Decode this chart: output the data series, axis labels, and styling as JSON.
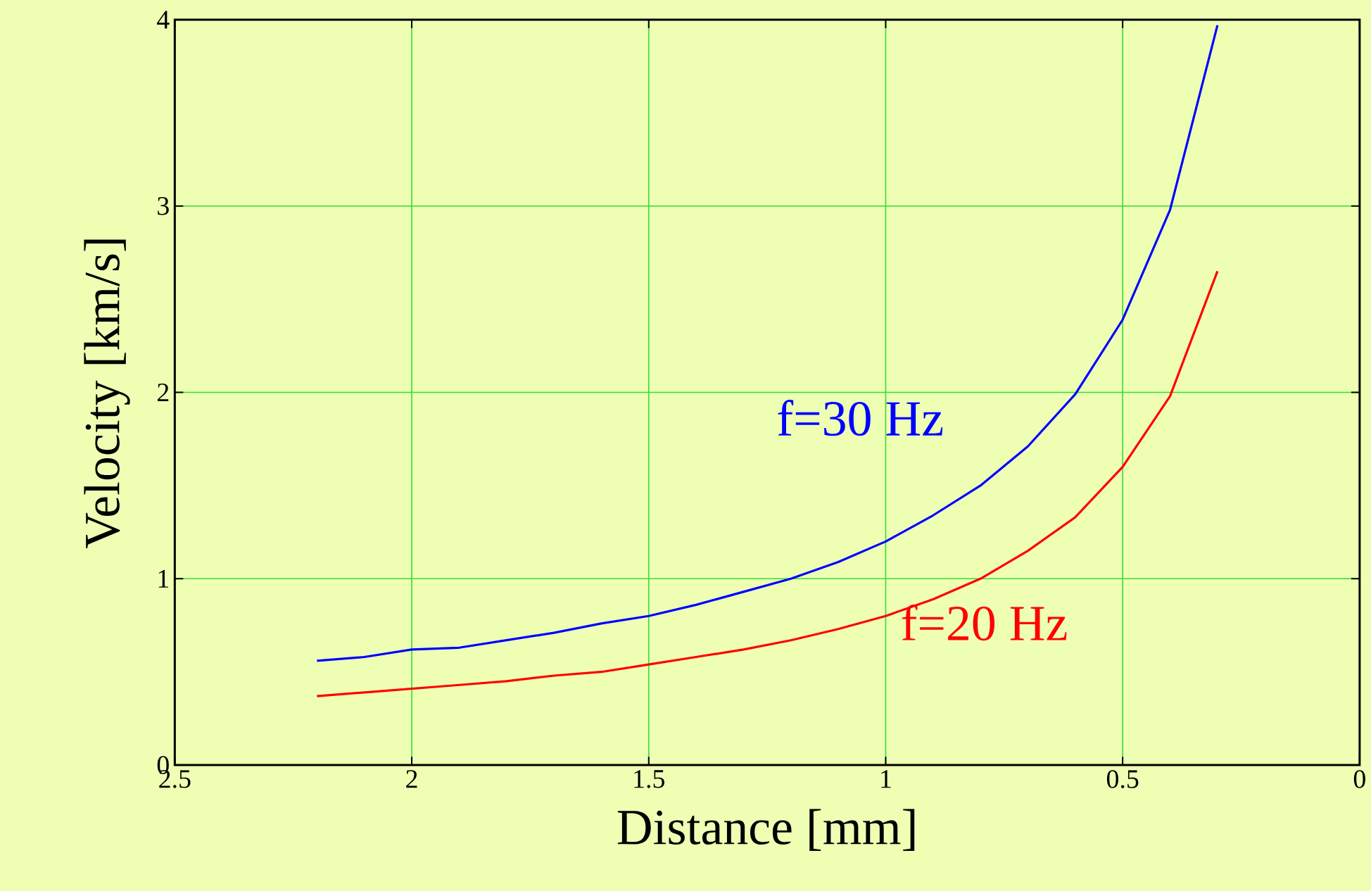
{
  "chart_data": {
    "type": "line",
    "xlabel": "Distance [mm]",
    "ylabel": "Velocity [km/s]",
    "xlim": [
      2.5,
      0
    ],
    "ylim": [
      0,
      4
    ],
    "xticks": [
      2.5,
      2,
      1.5,
      1,
      0.5,
      0
    ],
    "yticks": [
      0,
      1,
      2,
      3,
      4
    ],
    "grid": true,
    "marker": "none",
    "line_style": "solid",
    "x": [
      2.2,
      2.1,
      2.0,
      1.9,
      1.8,
      1.7,
      1.6,
      1.5,
      1.4,
      1.3,
      1.2,
      1.1,
      1.0,
      0.9,
      0.8,
      0.7,
      0.6,
      0.5,
      0.4,
      0.3
    ],
    "series": [
      {
        "name": "f=30 Hz",
        "color": "#0000ff",
        "values": [
          0.56,
          0.58,
          0.62,
          0.63,
          0.67,
          0.71,
          0.76,
          0.8,
          0.86,
          0.93,
          1.0,
          1.09,
          1.2,
          1.34,
          1.5,
          1.71,
          1.99,
          2.39,
          2.98,
          3.97
        ]
      },
      {
        "name": "f=20 Hz",
        "color": "#ff0000",
        "values": [
          0.37,
          0.39,
          0.41,
          0.43,
          0.45,
          0.48,
          0.5,
          0.54,
          0.58,
          0.62,
          0.67,
          0.73,
          0.8,
          0.89,
          1.0,
          1.15,
          1.33,
          1.6,
          1.98,
          2.65
        ]
      }
    ]
  }
}
